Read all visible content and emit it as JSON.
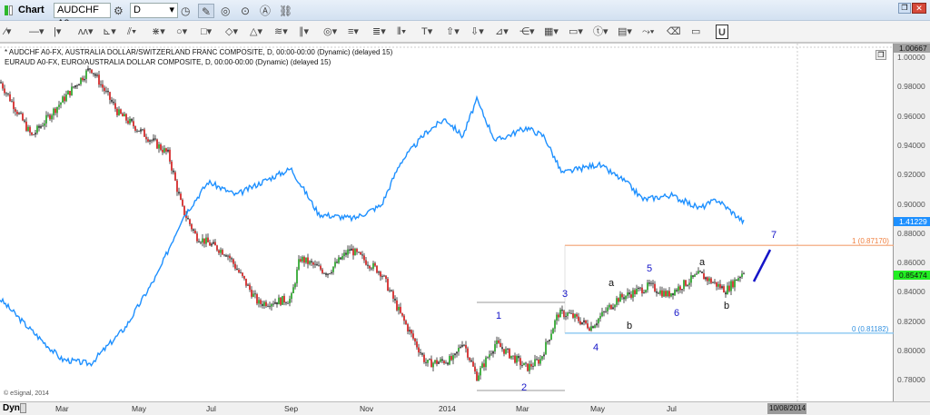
{
  "window": {
    "title": "Chart",
    "symbol": "AUDCHF A0",
    "interval": "D"
  },
  "icons": [
    "chart-icon",
    "settings-icon",
    "clock-icon",
    "pencil-icon",
    "refresh-icon",
    "play-icon",
    "alert-icon",
    "link-icon",
    "restore-icon",
    "close-icon"
  ],
  "drawing_tools": [
    "line",
    "horizontal-line",
    "vertical-line",
    "zigzag",
    "fan",
    "gann",
    "speedlines",
    "ellipse",
    "rectangle",
    "diamond",
    "triangle",
    "channels",
    "parallel",
    "circles",
    "fib-retracement",
    "fib-extension",
    "cycles",
    "text",
    "arrow-up",
    "arrow-down",
    "andrews",
    "arc",
    "grid",
    "mob",
    "tj",
    "pti",
    "connect",
    "eraser",
    "layers",
    "magnet"
  ],
  "legend": {
    "line1": "* AUDCHF A0-FX, AUSTRALIA DOLLAR/SWITZERLAND FRANC COMPOSITE, D, 00:00-00:00 (Dynamic) (delayed 15)",
    "line2": "EURAUD A0-FX, EURO/AUSTRALIA DOLLAR COMPOSITE, D, 00:00-00:00 (Dynamic) (delayed 15)"
  },
  "copyright": "© eSignal, 2014",
  "y_axis": {
    "ticks": [
      "1.00000",
      "0.98000",
      "0.96000",
      "0.94000",
      "0.92000",
      "0.90000",
      "0.88000",
      "0.86000",
      "0.84000",
      "0.82000",
      "0.80000",
      "0.78000"
    ],
    "high_tag": "1.00667",
    "euraud_tag": "1.41229",
    "audchf_tag": "0.85474"
  },
  "x_axis": {
    "dyn": "Dyn",
    "ticks": [
      "Mar",
      "May",
      "Jul",
      "Sep",
      "Nov",
      "2014",
      "Mar",
      "May",
      "Jul"
    ],
    "cursor_date": "10/08/2014"
  },
  "colors": {
    "up": "#1a9e1a",
    "down": "#d01010",
    "euraud": "#1e90ff",
    "fib1": "#f4a070",
    "fib0": "#7cc0f0",
    "wave": "#1515c8"
  },
  "fib": {
    "level1": "1 (0.87170)",
    "level0": "0 (0.81182)"
  },
  "waves": {
    "w1": "1",
    "w2": "2",
    "w3": "3",
    "w4": "4",
    "w5": "5",
    "w6": "6",
    "w7": "7",
    "a1": "a",
    "b1": "b",
    "a2": "a",
    "b2": "b"
  },
  "chart_data": {
    "type": "candlestick+line",
    "ylim": [
      0.77,
      1.0067
    ],
    "audchf_close": [
      [
        "2013-01-11",
        0.983
      ],
      [
        "2013-02-05",
        0.946
      ],
      [
        "2013-03-24",
        0.993
      ],
      [
        "2013-04-15",
        0.962
      ],
      [
        "2013-05-25",
        0.934
      ],
      [
        "2013-06-05",
        0.897
      ],
      [
        "2013-06-16",
        0.878
      ],
      [
        "2013-07-11",
        0.866
      ],
      [
        "2013-08-05",
        0.832
      ],
      [
        "2013-08-31",
        0.835
      ],
      [
        "2013-09-07",
        0.863
      ],
      [
        "2013-09-29",
        0.853
      ],
      [
        "2013-10-17",
        0.869
      ],
      [
        "2013-11-11",
        0.853
      ],
      [
        "2013-11-26",
        0.825
      ],
      [
        "2013-12-17",
        0.791
      ],
      [
        "2014-01-08",
        0.794
      ],
      [
        "2014-01-15",
        0.807
      ],
      [
        "2014-01-26",
        0.782
      ],
      [
        "2014-02-10",
        0.805
      ],
      [
        "2014-03-07",
        0.788
      ],
      [
        "2014-03-18",
        0.794
      ],
      [
        "2014-04-01",
        0.825
      ],
      [
        "2014-04-09",
        0.825
      ],
      [
        "2014-04-27",
        0.816
      ],
      [
        "2014-05-18",
        0.835
      ],
      [
        "2014-06-13",
        0.844
      ],
      [
        "2014-06-27",
        0.838
      ],
      [
        "2014-07-23",
        0.852
      ],
      [
        "2014-08-13",
        0.841
      ],
      [
        "2014-08-28",
        0.855
      ]
    ],
    "euraud_on_left_axis": [
      [
        "2013-01-11",
        0.835
      ],
      [
        "2013-02-02",
        0.816
      ],
      [
        "2013-03-01",
        0.794
      ],
      [
        "2013-03-24",
        0.791
      ],
      [
        "2013-04-21",
        0.816
      ],
      [
        "2013-05-17",
        0.853
      ],
      [
        "2013-06-05",
        0.89
      ],
      [
        "2013-06-26",
        0.915
      ],
      [
        "2013-07-18",
        0.906
      ],
      [
        "2013-08-08",
        0.915
      ],
      [
        "2013-08-31",
        0.924
      ],
      [
        "2013-09-22",
        0.893
      ],
      [
        "2013-10-20",
        0.89
      ],
      [
        "2013-11-11",
        0.899
      ],
      [
        "2013-11-26",
        0.928
      ],
      [
        "2013-12-17",
        0.949
      ],
      [
        "2014-01-01",
        0.958
      ],
      [
        "2014-01-15",
        0.946
      ],
      [
        "2014-01-26",
        0.971
      ],
      [
        "2014-02-10",
        0.943
      ],
      [
        "2014-03-07",
        0.952
      ],
      [
        "2014-03-21",
        0.946
      ],
      [
        "2014-04-04",
        0.921
      ],
      [
        "2014-05-03",
        0.927
      ],
      [
        "2014-05-25",
        0.915
      ],
      [
        "2014-06-08",
        0.903
      ],
      [
        "2014-06-30",
        0.906
      ],
      [
        "2014-07-23",
        0.897
      ],
      [
        "2014-08-06",
        0.903
      ],
      [
        "2014-08-28",
        0.887
      ]
    ]
  }
}
